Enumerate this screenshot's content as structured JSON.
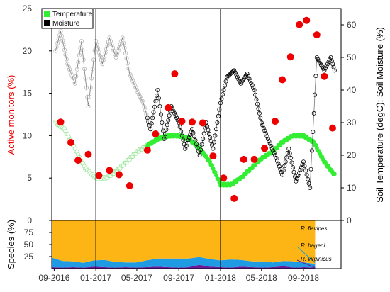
{
  "chart_data": [
    {
      "type": "scatter",
      "xlabel": "",
      "ylabel_left": "Active monitors (%)",
      "ylabel_right": "Soil Temperature (degC); Soil Moisture (%)",
      "ylim_left": [
        0,
        25
      ],
      "ylim_right": [
        0,
        65
      ],
      "yticks_left": [
        "0",
        "5",
        "10",
        "15",
        "20",
        "25"
      ],
      "yticks_right": [
        "0",
        "10",
        "20",
        "30",
        "40",
        "50",
        "60"
      ],
      "x_ticks": [
        "09-2016",
        "01-2017",
        "05-2017",
        "09-2017",
        "01-2018",
        "05-2018",
        "09-2018"
      ],
      "vertical_lines": [
        "01-2017",
        "01-2018"
      ],
      "legend": [
        {
          "label": "Temperature",
          "color": "#33ee33"
        },
        {
          "label": "Moisture",
          "color": "#000000"
        }
      ],
      "colors": {
        "monitors": "#ee0000",
        "temperature": "#33ee33",
        "temperature_faded": "#9be79b",
        "moisture": "#000000",
        "moisture_faded": "#b8b8b8"
      },
      "active_monitors": {
        "x": [
          "2016-09-20",
          "2016-10-20",
          "2016-11-10",
          "2016-12-10",
          "2017-01-10",
          "2017-02-10",
          "2017-03-10",
          "2017-04-10",
          "2017-06-01",
          "2017-06-25",
          "2017-08-01",
          "2017-08-20",
          "2017-09-10",
          "2017-10-10",
          "2017-11-10",
          "2017-12-10",
          "2018-01-10",
          "2018-02-10",
          "2018-03-10",
          "2018-04-10",
          "2018-05-10",
          "2018-06-10",
          "2018-07-01",
          "2018-07-25",
          "2018-08-20",
          "2018-09-10",
          "2018-10-10",
          "2018-11-01",
          "2018-11-25"
        ],
        "y": [
          11.6,
          9.2,
          7.1,
          7.8,
          5.3,
          5.9,
          5.4,
          4.1,
          8.3,
          10.2,
          13.3,
          17.3,
          11.7,
          11.6,
          11.5,
          7.6,
          5.0,
          2.6,
          7.2,
          7.2,
          8.5,
          11.7,
          16.6,
          19.3,
          23.1,
          23.6,
          21.9,
          17.0,
          10.9
        ]
      },
      "soil_temperature": {
        "x": [
          "2016-09-05",
          "2016-10-01",
          "2016-11-01",
          "2016-12-01",
          "2017-01-01",
          "2017-02-01",
          "2017-03-01",
          "2017-04-01",
          "2017-05-01",
          "2017-06-01",
          "2017-07-01",
          "2017-08-01",
          "2017-09-01",
          "2017-10-01",
          "2017-11-01",
          "2017-12-01",
          "2018-01-01",
          "2018-02-01",
          "2018-03-01",
          "2018-04-01",
          "2018-05-01",
          "2018-06-01",
          "2018-07-01",
          "2018-08-01",
          "2018-09-01",
          "2018-10-01",
          "2018-11-01",
          "2018-12-01"
        ],
        "y": [
          30,
          28,
          22,
          16,
          13,
          13,
          15,
          18,
          21,
          23,
          25,
          26,
          26,
          25,
          22,
          18,
          11,
          11,
          13,
          16,
          19,
          21,
          24,
          26,
          26,
          24,
          18,
          14
        ]
      },
      "soil_moisture": {
        "x": [
          "2016-09-05",
          "2016-09-20",
          "2016-10-10",
          "2016-11-01",
          "2016-11-20",
          "2016-12-10",
          "2017-01-01",
          "2017-01-20",
          "2017-02-10",
          "2017-03-01",
          "2017-03-20",
          "2017-04-10",
          "2017-05-01",
          "2017-05-20",
          "2017-06-10",
          "2017-07-01",
          "2017-07-20",
          "2017-08-10",
          "2017-09-01",
          "2017-09-20",
          "2017-10-10",
          "2017-11-01",
          "2017-11-20",
          "2017-12-10",
          "2018-01-01",
          "2018-01-20",
          "2018-02-10",
          "2018-03-01",
          "2018-03-20",
          "2018-04-10",
          "2018-05-01",
          "2018-05-20",
          "2018-06-10",
          "2018-07-01",
          "2018-07-20",
          "2018-08-10",
          "2018-09-01",
          "2018-09-20",
          "2018-10-10",
          "2018-11-01",
          "2018-11-20",
          "2018-12-01"
        ],
        "y": [
          52,
          58,
          48,
          42,
          55,
          35,
          55,
          48,
          56,
          50,
          56,
          45,
          40,
          36,
          28,
          40,
          25,
          35,
          30,
          22,
          28,
          20,
          30,
          22,
          36,
          44,
          46,
          42,
          45,
          40,
          30,
          25,
          20,
          14,
          22,
          12,
          18,
          10,
          50,
          46,
          50,
          46
        ]
      }
    },
    {
      "type": "area",
      "ylabel": "Species (%)",
      "ylim": [
        0,
        100
      ],
      "yticks": [
        "25",
        "50",
        "75"
      ],
      "series": [
        {
          "name": "R. virginicus",
          "color": "#6a1b9a",
          "values": [
            3,
            2,
            3,
            2,
            4,
            3,
            2,
            3,
            2,
            3,
            4,
            3,
            2,
            3,
            8,
            4,
            3,
            2,
            4,
            3,
            2,
            3,
            5,
            2,
            3,
            2
          ]
        },
        {
          "name": "R. hageni",
          "color": "#1e9be2",
          "values": [
            20,
            14,
            12,
            10,
            13,
            15,
            12,
            10,
            11,
            14,
            17,
            18,
            19,
            18,
            16,
            16,
            14,
            17,
            14,
            12,
            13,
            10,
            11,
            13,
            10,
            8
          ]
        },
        {
          "name": "R. flavipes",
          "color": "#fdb515",
          "values": [
            77,
            84,
            85,
            88,
            83,
            82,
            86,
            87,
            87,
            83,
            79,
            79,
            79,
            79,
            76,
            80,
            83,
            81,
            82,
            85,
            85,
            87,
            84,
            85,
            87,
            90
          ]
        }
      ]
    }
  ]
}
